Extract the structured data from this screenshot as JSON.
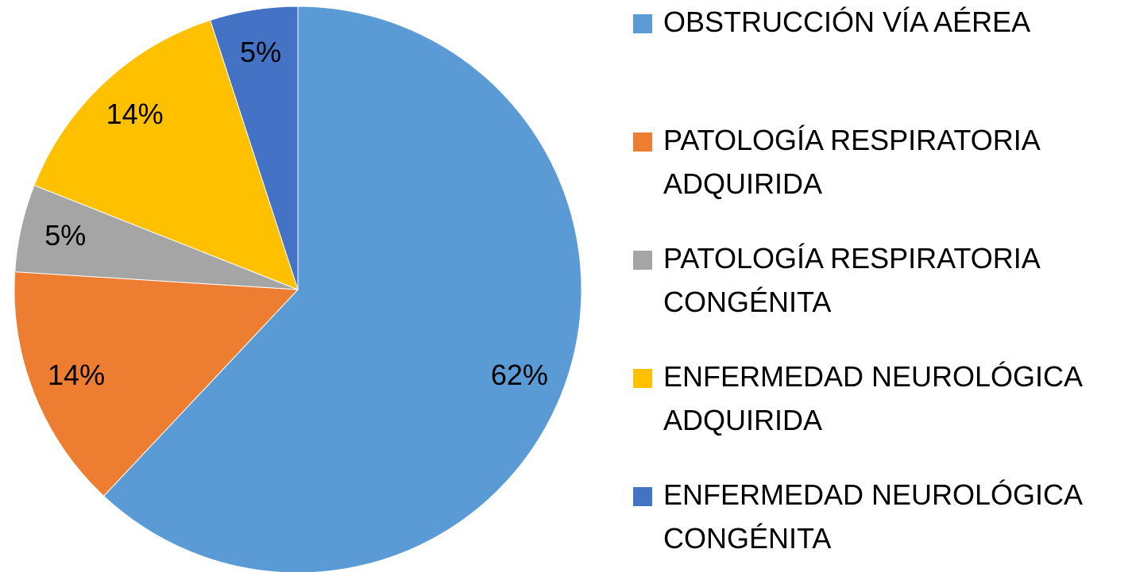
{
  "chart_data": {
    "type": "pie",
    "categories": [
      "OBSTRUCCIÓN VÍA AÉREA",
      "PATOLOGÍA RESPIRATORIA ADQUIRIDA",
      "PATOLOGÍA RESPIRATORIA CONGÉNITA",
      "ENFERMEDAD NEUROLÓGICA ADQUIRIDA",
      "ENFERMEDAD NEUROLÓGICA CONGÉNITA"
    ],
    "values": [
      62,
      14,
      5,
      14,
      5
    ],
    "value_labels": [
      "62%",
      "14%",
      "5%",
      "14%",
      "5%"
    ],
    "colors": [
      "#5b9bd5",
      "#ed7d31",
      "#a5a5a5",
      "#ffc000",
      "#4472c4"
    ],
    "legend": "right"
  }
}
